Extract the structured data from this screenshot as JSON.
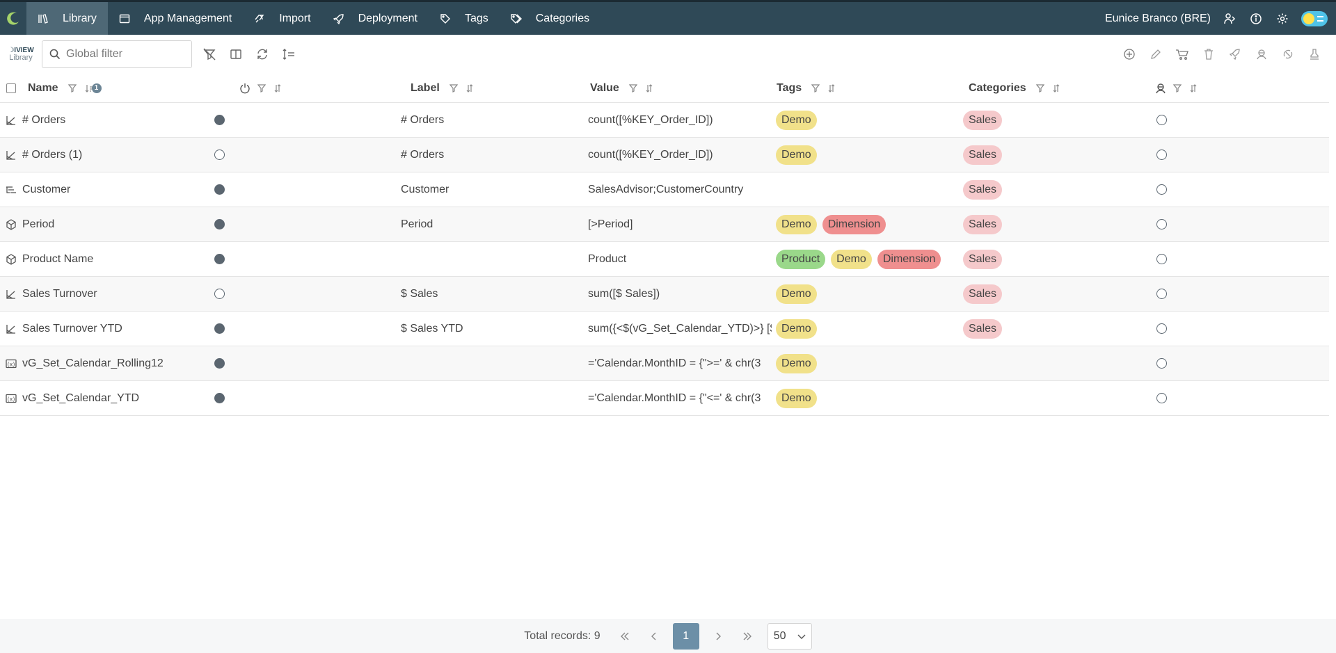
{
  "nav": {
    "items": [
      {
        "label": "Library",
        "icon": "library-icon",
        "active": true
      },
      {
        "label": "App Management",
        "icon": "window-icon"
      },
      {
        "label": "Import",
        "icon": "import-icon"
      },
      {
        "label": "Deployment",
        "icon": "rocket-icon"
      },
      {
        "label": "Tags",
        "icon": "tag-icon"
      },
      {
        "label": "Categories",
        "icon": "tags-icon"
      }
    ],
    "user": "Eunice Branco (BRE)"
  },
  "toolbar": {
    "brand_top": "☽IVIEW",
    "brand_bottom": "Library",
    "filter_placeholder": "Global filter"
  },
  "table": {
    "headers": {
      "name": "Name",
      "name_sort_badge": "1",
      "label": "Label",
      "value": "Value",
      "tags": "Tags",
      "categories": "Categories"
    },
    "rows": [
      {
        "type": "measure",
        "name": "# Orders",
        "active": true,
        "label": "# Orders",
        "value": "count([%KEY_Order_ID])",
        "tags": [
          "Demo"
        ],
        "categories": [
          "Sales"
        ]
      },
      {
        "type": "measure",
        "name": "# Orders (1)",
        "active": false,
        "label": "# Orders",
        "value": "count([%KEY_Order_ID])",
        "tags": [
          "Demo"
        ],
        "categories": [
          "Sales"
        ]
      },
      {
        "type": "drilldown",
        "name": "Customer",
        "active": true,
        "label": "Customer",
        "value": "SalesAdvisor;CustomerCountry",
        "tags": [],
        "categories": [
          "Sales"
        ]
      },
      {
        "type": "dimension",
        "name": "Period",
        "active": true,
        "label": "Period",
        "value": "[>Period]",
        "tags": [
          "Demo",
          "Dimension"
        ],
        "categories": [
          "Sales"
        ]
      },
      {
        "type": "dimension",
        "name": "Product Name",
        "active": true,
        "label": "",
        "value": "Product",
        "tags": [
          "Product",
          "Demo",
          "Dimension"
        ],
        "categories": [
          "Sales"
        ]
      },
      {
        "type": "measure",
        "name": "Sales Turnover",
        "active": false,
        "label": "$ Sales",
        "value": "sum([$ Sales])",
        "tags": [
          "Demo"
        ],
        "categories": [
          "Sales"
        ]
      },
      {
        "type": "measure",
        "name": "Sales Turnover YTD",
        "active": true,
        "label": "$ Sales YTD",
        "value": "sum({<$(vG_Set_Calendar_YTD)>} [$ S",
        "tags": [
          "Demo"
        ],
        "categories": [
          "Sales"
        ]
      },
      {
        "type": "variable",
        "name": "vG_Set_Calendar_Rolling12",
        "active": true,
        "label": "",
        "value": "='Calendar.MonthID = {\">=' & chr(3",
        "tags": [
          "Demo"
        ],
        "categories": []
      },
      {
        "type": "variable",
        "name": "vG_Set_Calendar_YTD",
        "active": true,
        "label": "",
        "value": "='Calendar.MonthID = {\"<=' & chr(3",
        "tags": [
          "Demo"
        ],
        "categories": []
      }
    ]
  },
  "tag_colors": {
    "Demo": "#f1e18a",
    "Dimension": "#ef8f8f",
    "Product": "#9ad88a",
    "Sales": "#f5c9cb"
  },
  "pagination": {
    "total_label": "Total records: 9",
    "current_page": "1",
    "page_size": "50"
  },
  "colors": {
    "topbar": "#2f4957",
    "active_nav": "#4e6876",
    "page_button": "#6c8fa7"
  }
}
